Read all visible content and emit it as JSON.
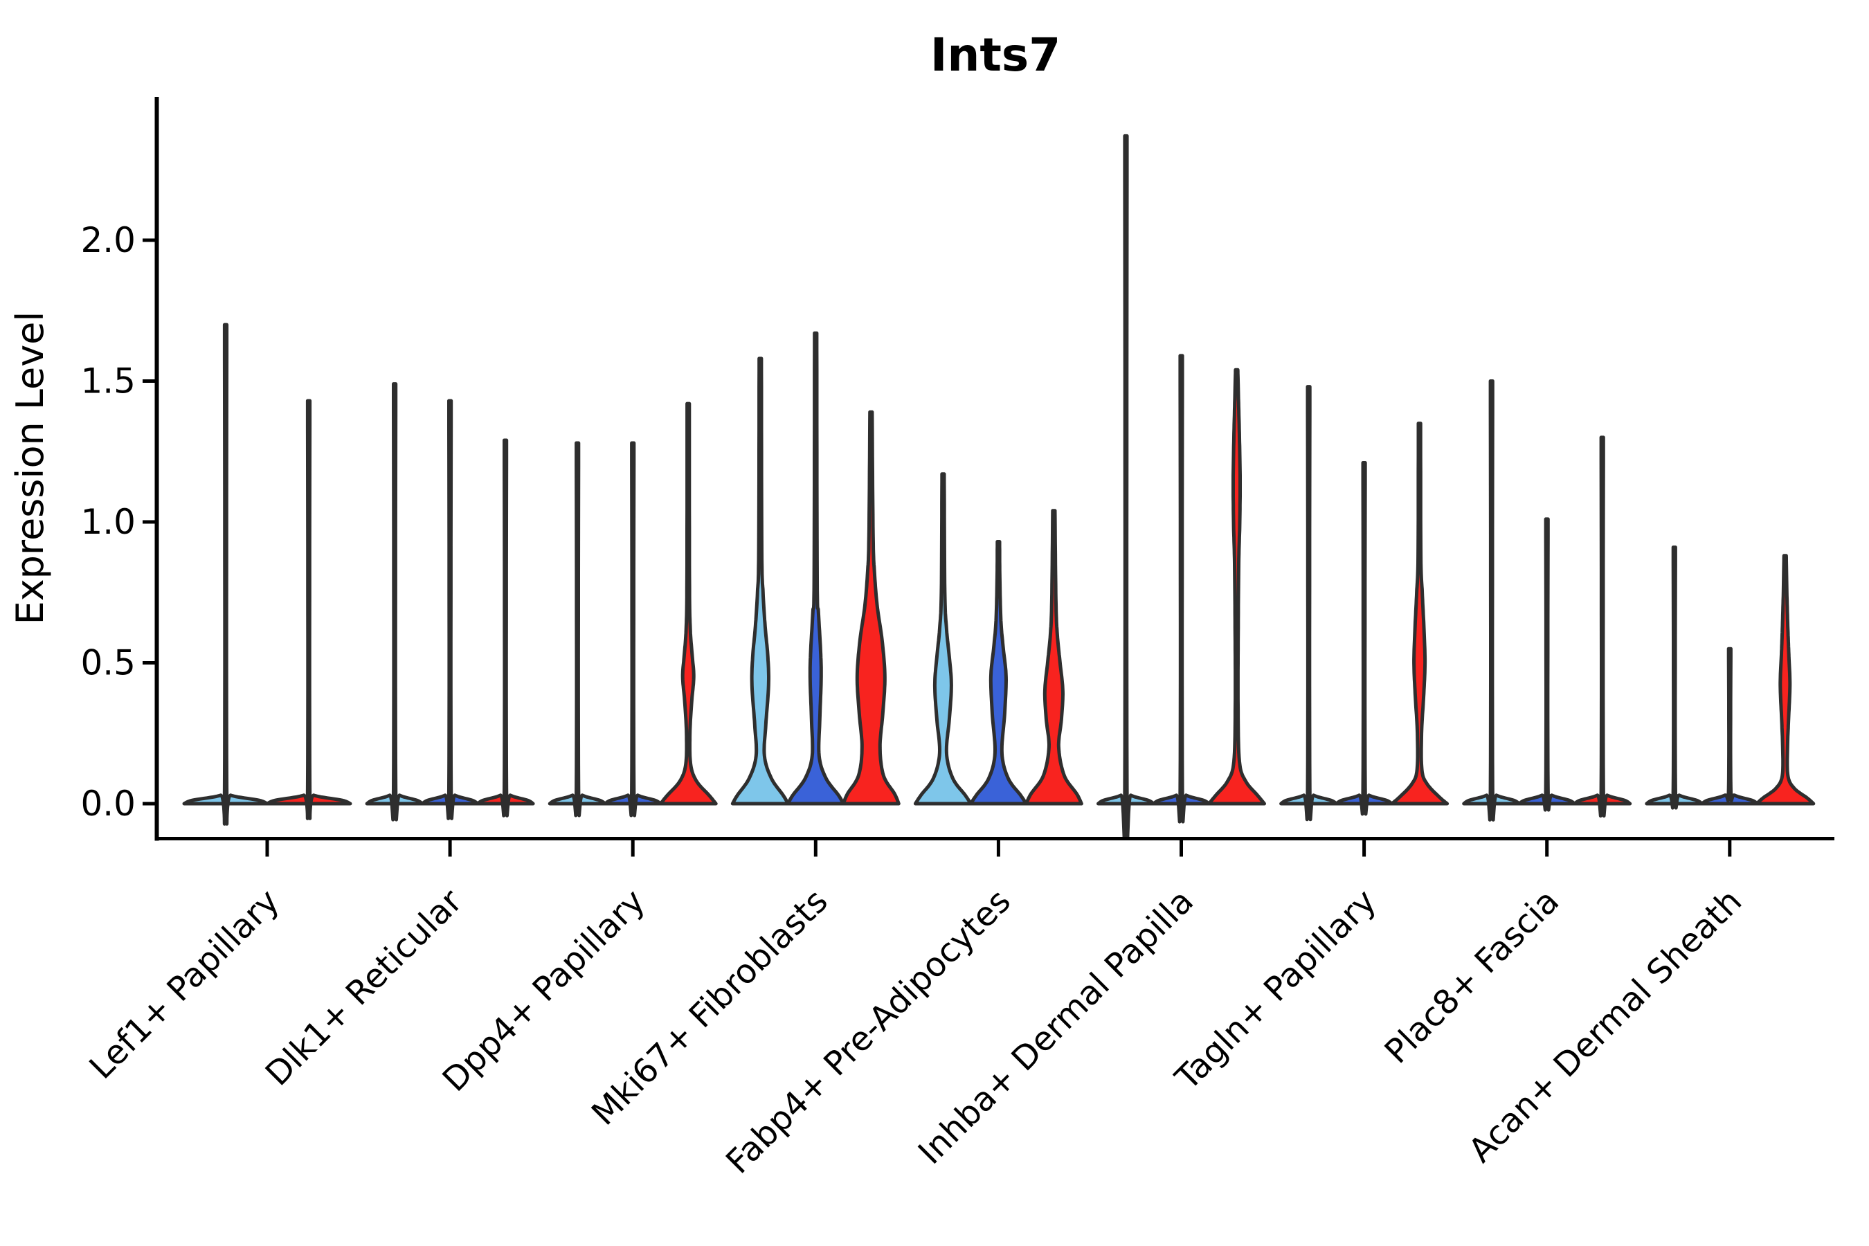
{
  "title": "Ints7",
  "colors": {
    "outline": "#2e2e2e",
    "axis": "#000000",
    "background": "#ffffff",
    "lightblue": "#7EC6EA",
    "blue": "#3A62D8",
    "red": "#F8231F"
  },
  "chart_data": {
    "type": "violin",
    "title": "Ints7",
    "xlabel": "",
    "ylabel": "Expression Level",
    "ylim": [
      -0.12,
      2.5
    ],
    "grid": false,
    "legend": "none",
    "yticks": [
      {
        "label": "0.0",
        "value": 0.0
      },
      {
        "label": "0.5",
        "value": 0.5
      },
      {
        "label": "1.0",
        "value": 1.0
      },
      {
        "label": "1.5",
        "value": 1.5
      },
      {
        "label": "2.0",
        "value": 2.0
      }
    ],
    "categories": [
      "Lef1+ Papillary",
      "Dlk1+ Reticular",
      "Dpp4+ Papillary",
      "Mki67+ Fibroblasts",
      "Fabp4+ Pre-Adipocytes",
      "Inhba+ Dermal Papilla",
      "Tagln+ Papillary",
      "Plac8+ Fascia",
      "Acan+ Dermal Sheath"
    ],
    "groups": [
      {
        "category": "Lef1+ Papillary",
        "violins": [
          {
            "color": "lightblue",
            "dx": -60,
            "max": 1.7,
            "profile": [
              [
                0,
                60
              ],
              [
                0.012,
                48
              ],
              [
                0.03,
                7
              ],
              [
                0.055,
                1.6
              ],
              [
                1.7,
                1.6
              ]
            ]
          },
          {
            "color": "red",
            "dx": 60,
            "max": 1.43,
            "profile": [
              [
                0,
                60
              ],
              [
                0.012,
                48
              ],
              [
                0.03,
                7
              ],
              [
                0.055,
                1.6
              ],
              [
                1.43,
                1.6
              ]
            ]
          }
        ]
      },
      {
        "category": "Dlk1+ Reticular",
        "violins": [
          {
            "color": "lightblue",
            "dx": -80,
            "max": 1.49,
            "profile": [
              [
                0,
                40
              ],
              [
                0.012,
                32
              ],
              [
                0.03,
                7
              ],
              [
                0.055,
                1.6
              ],
              [
                1.49,
                1.6
              ]
            ]
          },
          {
            "color": "blue",
            "dx": 0,
            "max": 1.43,
            "profile": [
              [
                0,
                40
              ],
              [
                0.012,
                32
              ],
              [
                0.03,
                7
              ],
              [
                0.055,
                1.6
              ],
              [
                1.43,
                1.6
              ]
            ]
          },
          {
            "color": "red",
            "dx": 80,
            "max": 1.29,
            "profile": [
              [
                0,
                40
              ],
              [
                0.012,
                32
              ],
              [
                0.03,
                7
              ],
              [
                0.055,
                1.6
              ],
              [
                1.29,
                1.6
              ]
            ]
          }
        ]
      },
      {
        "category": "Dpp4+ Papillary",
        "violins": [
          {
            "color": "lightblue",
            "dx": -80,
            "max": 1.28,
            "profile": [
              [
                0,
                40
              ],
              [
                0.012,
                32
              ],
              [
                0.03,
                7
              ],
              [
                0.055,
                1.6
              ],
              [
                1.28,
                1.6
              ]
            ]
          },
          {
            "color": "blue",
            "dx": 0,
            "max": 1.28,
            "profile": [
              [
                0,
                40
              ],
              [
                0.012,
                32
              ],
              [
                0.03,
                7
              ],
              [
                0.055,
                1.6
              ],
              [
                1.28,
                1.6
              ]
            ]
          },
          {
            "color": "red",
            "dx": 80,
            "max": 1.42,
            "profile": [
              [
                0,
                40
              ],
              [
                0.03,
                30
              ],
              [
                0.08,
                12
              ],
              [
                0.14,
                3.5
              ],
              [
                0.25,
                2.5
              ],
              [
                0.36,
                5
              ],
              [
                0.45,
                8
              ],
              [
                0.52,
                6
              ],
              [
                0.62,
                3
              ],
              [
                0.8,
                1.8
              ],
              [
                1.42,
                1.6
              ]
            ]
          }
        ]
      },
      {
        "category": "Mki67+ Fibroblasts",
        "violins": [
          {
            "color": "lightblue",
            "dx": -80,
            "max": 1.58,
            "profile": [
              [
                0,
                40
              ],
              [
                0.03,
                33
              ],
              [
                0.09,
                16
              ],
              [
                0.17,
                6
              ],
              [
                0.28,
                8
              ],
              [
                0.42,
                12
              ],
              [
                0.52,
                11
              ],
              [
                0.63,
                7
              ],
              [
                0.75,
                4
              ],
              [
                0.9,
                2.2
              ],
              [
                1.58,
                1.6
              ]
            ]
          },
          {
            "color": "blue",
            "dx": 0,
            "max": 1.67,
            "profile": [
              [
                0,
                40
              ],
              [
                0.03,
                33
              ],
              [
                0.09,
                15
              ],
              [
                0.17,
                5
              ],
              [
                0.3,
                6
              ],
              [
                0.45,
                8
              ],
              [
                0.55,
                7
              ],
              [
                0.68,
                4
              ],
              [
                0.8,
                2.2
              ],
              [
                1.67,
                1.6
              ]
            ]
          },
          {
            "color": "red",
            "dx": 80,
            "max": 1.39,
            "profile": [
              [
                0,
                40
              ],
              [
                0.035,
                34
              ],
              [
                0.1,
                18
              ],
              [
                0.2,
                13
              ],
              [
                0.32,
                17
              ],
              [
                0.45,
                20
              ],
              [
                0.58,
                16
              ],
              [
                0.7,
                9
              ],
              [
                0.82,
                5
              ],
              [
                0.95,
                3
              ],
              [
                1.39,
                1.6
              ]
            ]
          }
        ]
      },
      {
        "category": "Fabp4+ Pre-Adipocytes",
        "violins": [
          {
            "color": "lightblue",
            "dx": -80,
            "max": 1.17,
            "profile": [
              [
                0,
                40
              ],
              [
                0.03,
                32
              ],
              [
                0.09,
                14
              ],
              [
                0.18,
                5
              ],
              [
                0.3,
                9
              ],
              [
                0.42,
                12
              ],
              [
                0.52,
                9
              ],
              [
                0.62,
                5
              ],
              [
                0.75,
                2.5
              ],
              [
                1.17,
                1.6
              ]
            ]
          },
          {
            "color": "blue",
            "dx": 0,
            "max": 0.93,
            "profile": [
              [
                0,
                40
              ],
              [
                0.03,
                32
              ],
              [
                0.09,
                14
              ],
              [
                0.18,
                5
              ],
              [
                0.32,
                9
              ],
              [
                0.45,
                11
              ],
              [
                0.55,
                7
              ],
              [
                0.65,
                3.5
              ],
              [
                0.8,
                2
              ],
              [
                0.93,
                1.6
              ]
            ]
          },
          {
            "color": "red",
            "dx": 80,
            "max": 1.04,
            "profile": [
              [
                0,
                40
              ],
              [
                0.035,
                33
              ],
              [
                0.1,
                15
              ],
              [
                0.2,
                7
              ],
              [
                0.3,
                11
              ],
              [
                0.4,
                13
              ],
              [
                0.5,
                9
              ],
              [
                0.6,
                5
              ],
              [
                0.72,
                3
              ],
              [
                1.04,
                1.6
              ]
            ]
          }
        ]
      },
      {
        "category": "Inhba+ Dermal Papilla",
        "violins": [
          {
            "color": "lightblue",
            "dx": -80,
            "max": 2.37,
            "profile": [
              [
                0,
                40
              ],
              [
                0.012,
                32
              ],
              [
                0.03,
                7
              ],
              [
                0.055,
                1.6
              ],
              [
                2.37,
                1.6
              ]
            ]
          },
          {
            "color": "blue",
            "dx": 0,
            "max": 1.59,
            "profile": [
              [
                0,
                40
              ],
              [
                0.012,
                32
              ],
              [
                0.03,
                7
              ],
              [
                0.055,
                1.6
              ],
              [
                1.59,
                1.6
              ]
            ]
          },
          {
            "color": "red",
            "dx": 80,
            "max": 1.54,
            "profile": [
              [
                0,
                40
              ],
              [
                0.03,
                30
              ],
              [
                0.08,
                13
              ],
              [
                0.15,
                4
              ],
              [
                0.35,
                2
              ],
              [
                0.6,
                2.2
              ],
              [
                0.85,
                3
              ],
              [
                1.0,
                4.5
              ],
              [
                1.15,
                5
              ],
              [
                1.3,
                4
              ],
              [
                1.45,
                2.5
              ],
              [
                1.54,
                1.6
              ]
            ]
          }
        ]
      },
      {
        "category": "Tagln+ Papillary",
        "violins": [
          {
            "color": "lightblue",
            "dx": -80,
            "max": 1.48,
            "profile": [
              [
                0,
                40
              ],
              [
                0.012,
                32
              ],
              [
                0.03,
                7
              ],
              [
                0.055,
                1.6
              ],
              [
                1.48,
                1.6
              ]
            ]
          },
          {
            "color": "blue",
            "dx": 0,
            "max": 1.21,
            "profile": [
              [
                0,
                40
              ],
              [
                0.012,
                32
              ],
              [
                0.03,
                7
              ],
              [
                0.055,
                1.6
              ],
              [
                1.21,
                1.6
              ]
            ]
          },
          {
            "color": "red",
            "dx": 80,
            "max": 1.35,
            "profile": [
              [
                0,
                40
              ],
              [
                0.025,
                28
              ],
              [
                0.07,
                11
              ],
              [
                0.12,
                3.5
              ],
              [
                0.25,
                3
              ],
              [
                0.38,
                6
              ],
              [
                0.5,
                8
              ],
              [
                0.62,
                6.5
              ],
              [
                0.75,
                4
              ],
              [
                0.88,
                2
              ],
              [
                1.35,
                1.6
              ]
            ]
          }
        ]
      },
      {
        "category": "Plac8+ Fascia",
        "violins": [
          {
            "color": "lightblue",
            "dx": -80,
            "max": 1.5,
            "profile": [
              [
                0,
                40
              ],
              [
                0.012,
                32
              ],
              [
                0.03,
                7
              ],
              [
                0.055,
                1.6
              ],
              [
                1.5,
                1.6
              ]
            ]
          },
          {
            "color": "blue",
            "dx": 0,
            "max": 1.01,
            "profile": [
              [
                0,
                40
              ],
              [
                0.012,
                32
              ],
              [
                0.03,
                7
              ],
              [
                0.055,
                1.6
              ],
              [
                1.01,
                1.6
              ]
            ]
          },
          {
            "color": "red",
            "dx": 80,
            "max": 1.3,
            "profile": [
              [
                0,
                40
              ],
              [
                0.012,
                32
              ],
              [
                0.03,
                7
              ],
              [
                0.055,
                1.6
              ],
              [
                1.3,
                1.6
              ]
            ]
          }
        ]
      },
      {
        "category": "Acan+ Dermal Sheath",
        "violins": [
          {
            "color": "lightblue",
            "dx": -80,
            "max": 0.91,
            "profile": [
              [
                0,
                40
              ],
              [
                0.012,
                32
              ],
              [
                0.03,
                7
              ],
              [
                0.055,
                1.6
              ],
              [
                0.91,
                1.6
              ]
            ]
          },
          {
            "color": "blue",
            "dx": 0,
            "max": 0.55,
            "profile": [
              [
                0,
                40
              ],
              [
                0.012,
                32
              ],
              [
                0.03,
                7
              ],
              [
                0.055,
                1.6
              ],
              [
                0.55,
                1.6
              ]
            ]
          },
          {
            "color": "red",
            "dx": 80,
            "max": 0.88,
            "profile": [
              [
                0,
                41
              ],
              [
                0.02,
                32
              ],
              [
                0.055,
                13
              ],
              [
                0.1,
                4
              ],
              [
                0.2,
                3.5
              ],
              [
                0.3,
                5
              ],
              [
                0.42,
                7
              ],
              [
                0.52,
                5.5
              ],
              [
                0.62,
                4
              ],
              [
                0.75,
                2.5
              ],
              [
                0.88,
                1.6
              ]
            ]
          }
        ]
      }
    ]
  }
}
